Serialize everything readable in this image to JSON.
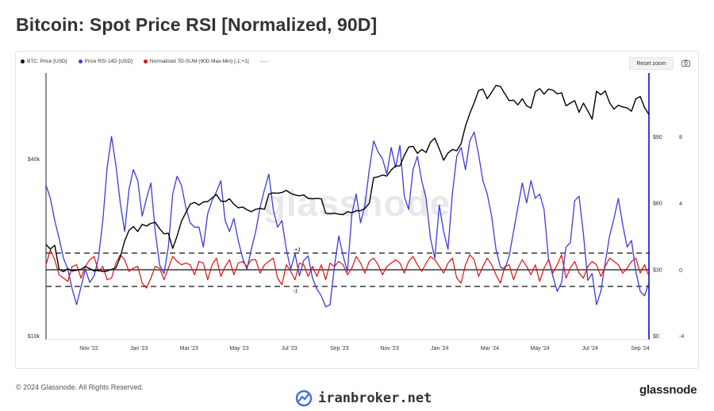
{
  "title": "Bitcoin: Spot Price RSI [Normalized, 90D]",
  "legend": {
    "items": [
      {
        "label": "BTC: Price [USD]",
        "color": "#000000"
      },
      {
        "label": "Price RSI 14D [USD]",
        "color": "#3b3bdc"
      },
      {
        "label": "Normalized 7D-SUM (90D Max-Min) [-1;+1]",
        "color": "#e01010"
      }
    ],
    "more": "---"
  },
  "reset_zoom": "Reset zoom",
  "footer": "© 2024 Glassnode. All Rights Reserved.",
  "brand": "glassnode",
  "watermark": "iranbroker.net",
  "chart_watermark": "glassnode",
  "chart_data": {
    "type": "line",
    "x_ticks": [
      "Nov '22",
      "Jan '23",
      "Mar '23",
      "May '23",
      "Jul '23",
      "Sep '23",
      "Nov '23",
      "Jan '24",
      "Mar '24",
      "May '24",
      "Jul '24",
      "Sep '24"
    ],
    "y_left": {
      "scale": "log",
      "ticks": [
        "$40k",
        "$10k"
      ]
    },
    "y_rsi": {
      "range": [
        0,
        100
      ],
      "ticks": [
        "$90",
        "$60",
        "$30",
        "$0"
      ]
    },
    "y_norm": {
      "range": [
        -4,
        12
      ],
      "ticks": [
        "8",
        "4",
        "0",
        "-4"
      ]
    },
    "threshold_labels": [
      "+1",
      "-1"
    ],
    "series": [
      {
        "name": "BTC: Price [USD]",
        "color": "#000000",
        "values": [
          20400,
          19700,
          20300,
          16800,
          16500,
          16900,
          16600,
          16700,
          16800,
          17200,
          16900,
          16600,
          16700,
          16500,
          16600,
          16800,
          17000,
          18500,
          21000,
          22800,
          23500,
          22600,
          23900,
          23600,
          24100,
          24300,
          23100,
          22200,
          22300,
          19800,
          21800,
          24500,
          26200,
          28000,
          28400,
          27800,
          28500,
          28600,
          29400,
          30200,
          28700,
          28600,
          29200,
          28000,
          27200,
          27400,
          26800,
          26400,
          26900,
          27100,
          26900,
          30300,
          30600,
          30500,
          30700,
          31200,
          30500,
          30100,
          29900,
          30100,
          29300,
          29200,
          29300,
          29200,
          26100,
          26000,
          26100,
          25900,
          25800,
          26400,
          26200,
          26600,
          26600,
          27100,
          28200,
          34500,
          34700,
          35200,
          34900,
          36600,
          37800,
          37800,
          41000,
          43800,
          44100,
          41700,
          43000,
          42000,
          45500,
          47000,
          43200,
          39500,
          41800,
          43000,
          42600,
          45000,
          51600,
          57000,
          62000,
          68200,
          69000,
          64000,
          67300,
          71000,
          70500,
          66600,
          63000,
          63300,
          61000,
          64000,
          60500,
          59500,
          67700,
          69200,
          66300,
          69000,
          68500,
          66500,
          67000,
          60500,
          61800,
          63000,
          57500,
          61800,
          58200,
          54500,
          67900,
          66000,
          68000,
          62000,
          59000,
          60800,
          60000,
          59500,
          58000,
          64000,
          65100,
          59700,
          56500
        ]
      },
      {
        "name": "Price RSI 14D [USD]",
        "color": "#3b3bdc",
        "values": [
          68,
          62,
          52,
          44,
          35,
          30,
          21,
          14,
          22,
          30,
          24,
          27,
          35,
          52,
          76,
          90,
          77,
          60,
          47,
          66,
          75,
          70,
          54,
          62,
          69,
          47,
          32,
          28,
          40,
          64,
          72,
          68,
          58,
          51,
          49,
          49,
          40,
          55,
          61,
          65,
          70,
          52,
          47,
          53,
          43,
          35,
          30,
          39,
          47,
          58,
          66,
          73,
          57,
          49,
          52,
          39,
          30,
          37,
          27,
          34,
          36,
          26,
          21,
          18,
          13,
          14,
          31,
          45,
          36,
          29,
          55,
          64,
          51,
          59,
          75,
          88,
          83,
          80,
          73,
          85,
          76,
          86,
          63,
          57,
          75,
          81,
          70,
          62,
          44,
          35,
          59,
          47,
          39,
          64,
          81,
          85,
          75,
          88,
          92,
          82,
          70,
          64,
          54,
          39,
          31,
          30,
          36,
          47,
          58,
          69,
          60,
          70,
          62,
          64,
          57,
          35,
          27,
          20,
          24,
          40,
          42,
          61,
          63,
          46,
          25,
          28,
          14,
          20,
          33,
          45,
          53,
          62,
          50,
          40,
          43,
          29,
          20,
          18,
          24
        ]
      },
      {
        "name": "Normalized 7D-SUM (90D Max-Min) [-1;+1]",
        "color": "#e01010",
        "values": [
          0.3,
          1.2,
          0.6,
          -0.3,
          -0.5,
          -0.7,
          0.2,
          0.3,
          -0.5,
          0.2,
          0.6,
          0.8,
          -0.1,
          0.2,
          -0.6,
          -0.5,
          0.4,
          0.9,
          0.6,
          -0.1,
          0.1,
          0.2,
          -0.8,
          -1.1,
          -0.5,
          0.2,
          0.1,
          -0.6,
          0.1,
          0.8,
          0.5,
          0.3,
          0.4,
          0.3,
          -0.3,
          0.5,
          0.4,
          -0.6,
          0.3,
          0.7,
          -0.4,
          0.2,
          0.6,
          -0.3,
          0.4,
          0.5,
          0.2,
          0.6,
          0.6,
          -0.2,
          0.3,
          0.5,
          0.7,
          -0.5,
          -0.9,
          0.3,
          -0.1,
          -0.6,
          0.4,
          0.3,
          -0.4,
          0.2,
          -0.4,
          0.3,
          -0.6,
          0.4,
          0.2,
          0.5,
          0.3,
          -0.3,
          0.1,
          0.8,
          0.4,
          -0.2,
          0.5,
          0.7,
          0.3,
          -0.3,
          0.2,
          0.4,
          0.6,
          0.4,
          -0.2,
          0.5,
          0.8,
          0.3,
          -0.1,
          0.4,
          0.8,
          0.6,
          0.2,
          -0.2,
          0.4,
          0.7,
          -0.5,
          -0.8,
          0.3,
          0.9,
          0.6,
          -0.4,
          0.2,
          0.7,
          0.3,
          -0.3,
          -0.8,
          0.2,
          0.3,
          -0.6,
          0.1,
          0.6,
          0.2,
          -0.3,
          0.3,
          -0.7,
          0.1,
          0.6,
          -0.2,
          0.3,
          0.9,
          -0.5,
          0.1,
          0.5,
          -0.2,
          -0.5,
          0.2,
          0.5,
          0.3,
          -0.4,
          0.2,
          0.7,
          0.5,
          0.3,
          -0.2,
          0.1,
          0.5,
          0.7,
          -0.2,
          0.3,
          -0.4
        ]
      }
    ],
    "reference_lines": [
      1,
      0,
      -1
    ],
    "grid": false
  }
}
